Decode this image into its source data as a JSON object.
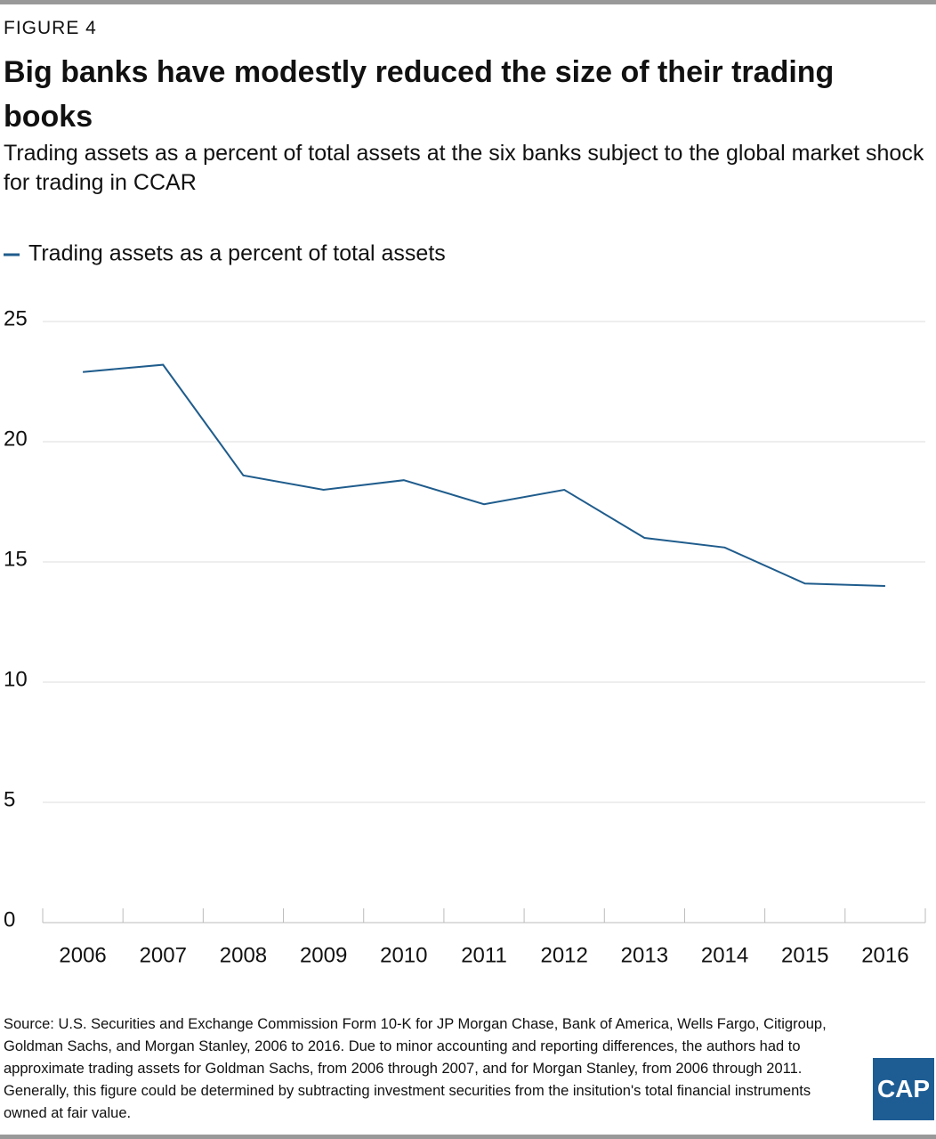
{
  "header": {
    "figure": "FIGURE 4",
    "title": "Big banks have modestly reduced the size of their trading books",
    "subtitle": "Trading assets as a percent of total assets at the six banks subject to the global market shock for trading in CCAR"
  },
  "chart_data": {
    "type": "line",
    "categories": [
      "2006",
      "2007",
      "2008",
      "2009",
      "2010",
      "2011",
      "2012",
      "2013",
      "2014",
      "2015",
      "2016"
    ],
    "series": [
      {
        "name": "Trading assets as a percent of total assets",
        "color": "#1f5c8c",
        "values": [
          22.9,
          23.2,
          18.6,
          18.0,
          18.4,
          17.4,
          18.0,
          16.0,
          15.6,
          14.1,
          14.0
        ]
      }
    ],
    "ylim": [
      0,
      25
    ],
    "yticks": [
      0,
      5,
      10,
      15,
      20,
      25
    ],
    "grid": true
  },
  "footer": {
    "source": "Source: U.S. Securities and Exchange Commission Form 10-K for JP Morgan Chase, Bank of America, Wells Fargo, Citigroup, Goldman Sachs, and Morgan Stanley, 2006 to 2016. Due to minor accounting and reporting differences, the authors had to approximate trading assets for Goldman Sachs, from 2006 through 2007, and for Morgan Stanley, from 2006 through 2011. Generally, this figure could be determined by subtracting investment securities from the insitution's total financial instruments owned at fair value.",
    "logo": "CAP"
  }
}
